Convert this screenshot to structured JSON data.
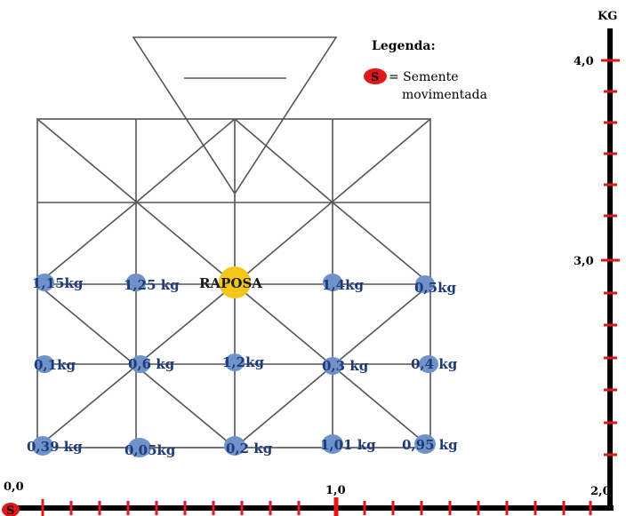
{
  "legend": {
    "title": "Legenda:",
    "symbol": "S",
    "line1": "= Semente",
    "line2": "movimentada"
  },
  "axis": {
    "y_unit": "KG",
    "y_4": "4,0",
    "y_3": "3,0",
    "x_0": "0,0",
    "x_1": "1,0",
    "x_2": "2,0",
    "origin_symbol": "S"
  },
  "board": {
    "fox_label": "RAPOSA",
    "fox_color": "#f5c518",
    "node_color": "#6f93c8",
    "row1": [
      "1,15kg",
      "1,25 kg",
      "1,4kg",
      "0,5kg"
    ],
    "row2": [
      "0,1kg",
      "0,6 kg",
      "1,2kg",
      "0,3 kg",
      "0,4 kg"
    ],
    "row3": [
      "0,39 kg",
      "0,05kg",
      "0,2 kg",
      "1,01 kg",
      "0,95 kg"
    ]
  },
  "colors": {
    "axis": "#000000",
    "tick": "#e01818",
    "seed": "#e01818"
  }
}
